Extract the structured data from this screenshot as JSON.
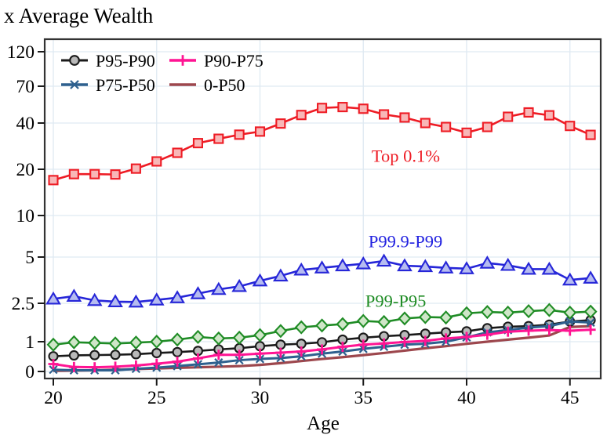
{
  "title": "x Average Wealth",
  "xlabel": "Age",
  "legend": {
    "items": [
      {
        "label": "P95-P90",
        "series_index": 3
      },
      {
        "label": "P90-P75",
        "series_index": 4
      },
      {
        "label": "P75-P50",
        "series_index": 5
      },
      {
        "label": "0-P50",
        "series_index": 6
      }
    ]
  },
  "chart_data": {
    "type": "line",
    "title": "x Average Wealth",
    "xlabel": "Age",
    "x_ticks": [
      20,
      25,
      30,
      35,
      40,
      45
    ],
    "y_ticks": [
      120,
      70,
      40,
      20,
      10,
      5,
      2.5,
      1,
      0
    ],
    "y_scale": "log-like (compressed toward zero)",
    "grid": true,
    "legend_position": "top-left-inside",
    "x": [
      20,
      21,
      22,
      23,
      24,
      25,
      26,
      27,
      28,
      29,
      30,
      31,
      32,
      33,
      34,
      35,
      36,
      37,
      38,
      39,
      40,
      41,
      42,
      43,
      44,
      45,
      46
    ],
    "series": [
      {
        "name": "Top 0.1%",
        "color": "#ee1c25",
        "marker": "square",
        "marker_fill": "#f8b7b7",
        "values": [
          17,
          18.6,
          18.6,
          18.5,
          20.2,
          22.5,
          25.6,
          29.6,
          31.6,
          33.6,
          35.2,
          39.7,
          45.2,
          50.3,
          51,
          49.7,
          45.6,
          43.5,
          40,
          37.7,
          34.6,
          37.7,
          44,
          47,
          45,
          38.3,
          33.5
        ]
      },
      {
        "name": "P99.9-P99",
        "color": "#2626d8",
        "marker": "triangle",
        "marker_fill": "#b6bcf0",
        "values": [
          2.67,
          2.78,
          2.61,
          2.56,
          2.55,
          2.63,
          2.72,
          2.89,
          3.08,
          3.22,
          3.5,
          3.77,
          4.12,
          4.25,
          4.39,
          4.52,
          4.71,
          4.39,
          4.34,
          4.25,
          4.2,
          4.57,
          4.42,
          4.17,
          4.17,
          3.55,
          3.65
        ]
      },
      {
        "name": "P99-P95",
        "color": "#1f8c25",
        "marker": "diamond",
        "marker_fill": "#cfe6c8",
        "values": [
          0.9,
          0.98,
          0.96,
          0.94,
          0.97,
          1.0,
          1.05,
          1.12,
          1.08,
          1.1,
          1.17,
          1.29,
          1.41,
          1.47,
          1.52,
          1.64,
          1.6,
          1.74,
          1.8,
          1.78,
          1.97,
          2.03,
          2.0,
          2.07,
          2.13,
          2.0,
          2.05
        ]
      },
      {
        "name": "P95-P90",
        "color": "#1a1a1a",
        "marker": "circle",
        "marker_fill": "#b9b9b9",
        "values": [
          0.51,
          0.54,
          0.55,
          0.56,
          0.58,
          0.62,
          0.65,
          0.69,
          0.74,
          0.78,
          0.85,
          0.9,
          0.93,
          0.98,
          1.05,
          1.1,
          1.14,
          1.17,
          1.21,
          1.25,
          1.28,
          1.38,
          1.43,
          1.45,
          1.5,
          1.62,
          1.67
        ]
      },
      {
        "name": "P90-P75",
        "color": "#ff1493",
        "marker": "plus",
        "marker_fill": "none",
        "values": [
          0.25,
          0.15,
          0.14,
          0.16,
          0.2,
          0.26,
          0.33,
          0.44,
          0.56,
          0.56,
          0.6,
          0.63,
          0.67,
          0.74,
          0.83,
          0.9,
          0.94,
          0.99,
          1.02,
          1.08,
          1.12,
          1.18,
          1.27,
          1.3,
          1.32,
          1.3,
          1.33
        ]
      },
      {
        "name": "P75-P50",
        "color": "#2e608e",
        "marker": "x",
        "marker_fill": "none",
        "values": [
          0.06,
          0.04,
          0.04,
          0.04,
          0.09,
          0.13,
          0.18,
          0.24,
          0.3,
          0.38,
          0.42,
          0.45,
          0.51,
          0.6,
          0.67,
          0.76,
          0.83,
          0.9,
          0.93,
          1.0,
          1.11,
          1.25,
          1.32,
          1.4,
          1.45,
          1.62,
          1.58
        ]
      },
      {
        "name": "0-P50",
        "color": "#9d474d",
        "marker": "none",
        "marker_fill": "none",
        "values": [
          0.02,
          0.03,
          0.04,
          0.06,
          0.08,
          0.1,
          0.12,
          0.14,
          0.16,
          0.18,
          0.22,
          0.28,
          0.35,
          0.42,
          0.48,
          0.55,
          0.62,
          0.7,
          0.78,
          0.85,
          0.93,
          1.0,
          1.05,
          1.1,
          1.16,
          1.42,
          1.45
        ]
      }
    ],
    "annotations": [
      {
        "text": "Top 0.1%",
        "color": "#ee1c25",
        "age": 35.4,
        "value": 22.3
      },
      {
        "text": "P99.9-P99",
        "color": "#2222e0",
        "age": 35.25,
        "value": 5.9
      },
      {
        "text": "P99-P95",
        "color": "#1f8c25",
        "age": 35.1,
        "value": 2.3
      }
    ],
    "colors": {
      "grid": "#dfe9f2",
      "border": "#333333",
      "tick_text": "#000000"
    }
  }
}
